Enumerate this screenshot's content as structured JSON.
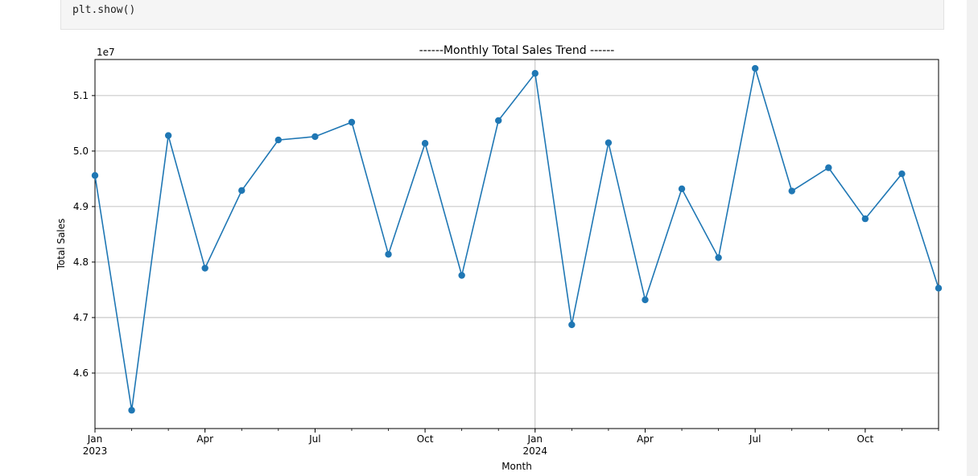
{
  "code": {
    "line": "plt.show()"
  },
  "chart_data": {
    "type": "line",
    "title": "------Monthly Total Sales Trend ------",
    "xlabel": "Month",
    "ylabel": "Total Sales",
    "y_offset_label": "1e7",
    "y_scale": 10000000,
    "ylim": [
      4.5,
      5.165
    ],
    "xlim": [
      "2023-01",
      "2024-12"
    ],
    "grid": true,
    "marker": "circle",
    "color": "#1f77b4",
    "categories": [
      "2023-01",
      "2023-02",
      "2023-03",
      "2023-04",
      "2023-05",
      "2023-06",
      "2023-07",
      "2023-08",
      "2023-09",
      "2023-10",
      "2023-11",
      "2023-12",
      "2024-01",
      "2024-02",
      "2024-03",
      "2024-04",
      "2024-05",
      "2024-06",
      "2024-07",
      "2024-08",
      "2024-09",
      "2024-10",
      "2024-11",
      "2024-12"
    ],
    "values": [
      4.956,
      4.533,
      5.028,
      4.789,
      4.929,
      5.02,
      5.026,
      5.052,
      4.814,
      5.014,
      4.776,
      5.055,
      5.14,
      4.687,
      5.015,
      4.732,
      4.932,
      4.808,
      5.149,
      4.928,
      4.97,
      4.878,
      4.959,
      4.753
    ],
    "yticks": [
      4.6,
      4.7,
      4.8,
      4.9,
      5.0,
      5.1
    ],
    "ytick_labels": [
      "4.6",
      "4.7",
      "4.8",
      "4.9",
      "5.0",
      "5.1"
    ],
    "xtick_labels": [
      {
        "index": 0,
        "text": "Jan",
        "year": "2023"
      },
      {
        "index": 3,
        "text": "Apr",
        "year": ""
      },
      {
        "index": 6,
        "text": "Jul",
        "year": ""
      },
      {
        "index": 9,
        "text": "Oct",
        "year": ""
      },
      {
        "index": 12,
        "text": "Jan",
        "year": "2024"
      },
      {
        "index": 15,
        "text": "Apr",
        "year": ""
      },
      {
        "index": 18,
        "text": "Jul",
        "year": ""
      },
      {
        "index": 21,
        "text": "Oct",
        "year": ""
      }
    ]
  }
}
